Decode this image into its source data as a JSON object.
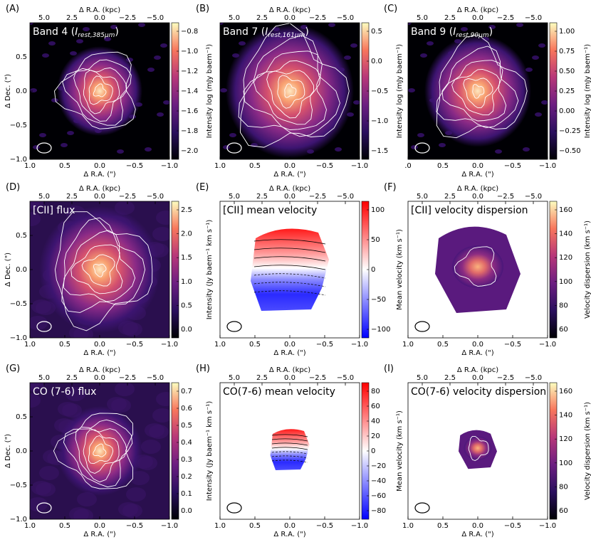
{
  "figure": {
    "panels": [
      {
        "letter": "(A)",
        "title": "Band 4 (",
        "title_sub": "I",
        "title_sub2": "rest,385μm",
        "title_tail": ")",
        "cb_label": "Intensity log (mJy baem⁻¹)",
        "cb_ticks": [
          "−0.8",
          "−1.0",
          "−1.2",
          "−1.4",
          "−1.6",
          "−1.8",
          "−2.0"
        ],
        "kind": "map"
      },
      {
        "letter": "(B)",
        "title": "Band 7 (",
        "title_sub": "I",
        "title_sub2": "rest,161μm",
        "title_tail": ")",
        "cb_label": "Intensity log (mJy baem⁻¹)",
        "cb_ticks": [
          "0.5",
          "0.0",
          "−0.5",
          "−1.0",
          "−1.5"
        ],
        "kind": "map"
      },
      {
        "letter": "(C)",
        "title": "Band 9 (",
        "title_sub": "I",
        "title_sub2": "rest,90μm",
        "title_tail": ")",
        "cb_label": "Intensity log (mJy baem⁻¹)",
        "cb_ticks": [
          "1.00",
          "0.75",
          "0.50",
          "0.25",
          "0.00",
          "−0.25",
          "−0.50"
        ],
        "kind": "map"
      },
      {
        "letter": "(D)",
        "title": "[CII] flux",
        "cb_label": "Intensity (Jy baem⁻¹ km s⁻¹)",
        "cb_ticks": [
          "2.5",
          "2.0",
          "1.5",
          "1.0",
          "0.5",
          "0.0"
        ],
        "kind": "map"
      },
      {
        "letter": "(E)",
        "title": "[CII] mean velocity",
        "cb_label": "Mean velocity (km s⁻¹)",
        "cb_ticks": [
          "100",
          "50",
          "0",
          "−50",
          "−100"
        ],
        "kind": "vel"
      },
      {
        "letter": "(F)",
        "title": "[CII] velocity dispersion",
        "cb_label": "Velocity dispersion (km s⁻¹)",
        "cb_ticks": [
          "160",
          "140",
          "120",
          "100",
          "80",
          "60"
        ],
        "kind": "disp"
      },
      {
        "letter": "(G)",
        "title": "CO (7-6) flux",
        "cb_label": "Intensity (Jy baem⁻¹ km s⁻¹)",
        "cb_ticks": [
          "0.7",
          "0.6",
          "0.5",
          "0.4",
          "0.3",
          "0.2",
          "0.1",
          "0.0"
        ],
        "kind": "map"
      },
      {
        "letter": "(H)",
        "title": "CO(7-6) mean velocity",
        "cb_label": "Mean velocity (km s⁻¹)",
        "cb_ticks": [
          "80",
          "60",
          "40",
          "20",
          "0",
          "−20",
          "−40",
          "−60",
          "−80"
        ],
        "kind": "vel"
      },
      {
        "letter": "(I)",
        "title": "CO(7-6) velocity dispersion",
        "cb_label": "Velocity dispersion (km s⁻¹)",
        "cb_ticks": [
          "160",
          "140",
          "120",
          "100",
          "80",
          "60"
        ],
        "kind": "disp"
      }
    ],
    "x_label": "Δ R.A. (\")",
    "top_label": "Δ R.A. (kpc)",
    "y_label": "Δ Dec. (\")"
  },
  "chart_data": [
    {
      "type": "heatmap",
      "title": "Band 4 (I rest,385μm)",
      "xlabel": "Δ R.A. (\")",
      "ylabel": "Δ Dec. (\")",
      "x2label": "Δ R.A. (kpc)",
      "xlim": [
        1.0,
        -1.0
      ],
      "ylim": [
        -1.0,
        1.0
      ],
      "x_ticks": [
        "1.0",
        "0.5",
        "0.0",
        "−0.5",
        "−1.0"
      ],
      "y_ticks": [
        "0.5",
        "0.0",
        "−0.5",
        "−1.0"
      ],
      "x2_ticks": [
        "5.0",
        "2.5",
        "0.0",
        "−2.5",
        "−5.0"
      ],
      "colorbar": {
        "label": "Intensity log (mJy baem⁻¹)",
        "range": [
          -2.1,
          -0.7
        ]
      }
    },
    {
      "type": "heatmap",
      "title": "Band 7 (I rest,161μm)",
      "xlabel": "Δ R.A. (\")",
      "x2label": "Δ R.A. (kpc)",
      "xlim": [
        1.0,
        -1.0
      ],
      "ylim": [
        -1.0,
        1.0
      ],
      "x_ticks": [
        "1.0",
        "0.5",
        "0.0",
        "−0.5",
        "−1.0"
      ],
      "x2_ticks": [
        "5.0",
        "2.5",
        "0.0",
        "−2.5",
        "−5.0"
      ],
      "colorbar": {
        "label": "Intensity log (mJy baem⁻¹)",
        "range": [
          -1.6,
          0.75
        ]
      }
    },
    {
      "type": "heatmap",
      "title": "Band 9 (I rest,90μm)",
      "xlabel": "Δ R.A. (\")",
      "x2label": "Δ R.A. (kpc)",
      "xlim": [
        1.0,
        -1.0
      ],
      "ylim": [
        -1.0,
        1.0
      ],
      "x_ticks": [
        ".0",
        "0.5",
        "0.0",
        "−0.5",
        "−1.0"
      ],
      "x2_ticks": [
        "5.0",
        "2.5",
        "0.0",
        "−2.5",
        "−5.0"
      ],
      "colorbar": {
        "label": "Intensity log (mJy baem⁻¹)",
        "range": [
          -0.6,
          1.15
        ]
      }
    },
    {
      "type": "heatmap",
      "title": "[CII] flux",
      "xlabel": "Δ R.A. (\")",
      "ylabel": "Δ Dec. (\")",
      "x2label": "Δ R.A. (kpc)",
      "xlim": [
        1.0,
        -1.0
      ],
      "ylim": [
        -1.0,
        1.0
      ],
      "x_ticks": [
        "1.0",
        "0.5",
        "0.0",
        "−0.5",
        "−1.0"
      ],
      "y_ticks": [
        "0.5",
        "0.0",
        "−0.5",
        "−1.0"
      ],
      "x2_ticks": [
        "5.0",
        "2.5",
        "0.0",
        "−2.5",
        "−5.0"
      ],
      "colorbar": {
        "label": "Intensity (Jy baem⁻¹ km s⁻¹)",
        "range": [
          -0.2,
          2.5
        ]
      }
    },
    {
      "type": "heatmap",
      "title": "[CII] mean velocity",
      "xlabel": "Δ R.A. (\")",
      "x2label": "Δ R.A. (kpc)",
      "xlim": [
        1.0,
        -1.0
      ],
      "ylim": [
        -1.0,
        1.0
      ],
      "x_ticks": [
        "1.0",
        "0.5",
        "0.0",
        "−0.5",
        "−1.0"
      ],
      "x2_ticks": [
        "5.0",
        "2.5",
        "0.0",
        "−2.5",
        "−5.0"
      ],
      "colorbar": {
        "label": "Mean velocity (km s⁻¹)",
        "range": [
          -125,
          125
        ]
      }
    },
    {
      "type": "heatmap",
      "title": "[CII] velocity dispersion",
      "xlabel": "Δ R.A. (\")",
      "x2label": "Δ R.A. (kpc)",
      "xlim": [
        1.0,
        -1.0
      ],
      "ylim": [
        -1.0,
        1.0
      ],
      "x_ticks": [
        "1.0",
        "0.5",
        "0.0",
        "−0.5",
        "−1.0"
      ],
      "x2_ticks": [
        "5.0",
        "2.5",
        "0.0",
        "−2.5",
        "−5.0"
      ],
      "colorbar": {
        "label": "Velocity dispersion (km s⁻¹)",
        "range": [
          45,
          170
        ]
      }
    },
    {
      "type": "heatmap",
      "title": "CO (7-6) flux",
      "xlabel": "Δ R.A. (\")",
      "ylabel": "Δ Dec. (\")",
      "x2label": "Δ R.A. (kpc)",
      "xlim": [
        1.0,
        -1.0
      ],
      "ylim": [
        -1.0,
        1.0
      ],
      "x_ticks": [
        "1.0",
        "0.5",
        "0.0",
        "−0.5",
        "−1.0"
      ],
      "y_ticks": [
        "0.5",
        "0.0",
        "−0.5",
        "−1.0"
      ],
      "x2_ticks": [
        "5.0",
        "2.5",
        "0.0",
        "−2.5",
        "−5.0"
      ],
      "colorbar": {
        "label": "Intensity (Jy baem⁻¹ km s⁻¹)",
        "range": [
          -0.07,
          0.72
        ]
      }
    },
    {
      "type": "heatmap",
      "title": "CO(7-6) mean velocity",
      "xlabel": "Δ R.A. (\")",
      "x2label": "Δ R.A. (kpc)",
      "xlim": [
        1.0,
        -1.0
      ],
      "ylim": [
        -1.0,
        1.0
      ],
      "x_ticks": [
        "1.0",
        "0.5",
        "0.0",
        "−0.5",
        "−1.0"
      ],
      "x2_ticks": [
        "5.0",
        "2.5",
        "0.0",
        "−2.5",
        "−5.0"
      ],
      "colorbar": {
        "label": "Mean velocity (km s⁻¹)",
        "range": [
          -85,
          92
        ]
      }
    },
    {
      "type": "heatmap",
      "title": "CO(7-6) velocity dispersion",
      "xlabel": "Δ R.A. (\")",
      "x2label": "Δ R.A. (kpc)",
      "xlim": [
        1.0,
        -1.0
      ],
      "ylim": [
        -1.0,
        1.0
      ],
      "x_ticks": [
        "1.0",
        "0.5",
        "0.0",
        "−0.5",
        "−1.0"
      ],
      "x2_ticks": [
        "5.0",
        "2.5",
        "0.0",
        "−2.5",
        "−5.0"
      ],
      "colorbar": {
        "label": "Velocity dispersion (km s⁻¹)",
        "range": [
          60,
          168
        ]
      }
    }
  ]
}
